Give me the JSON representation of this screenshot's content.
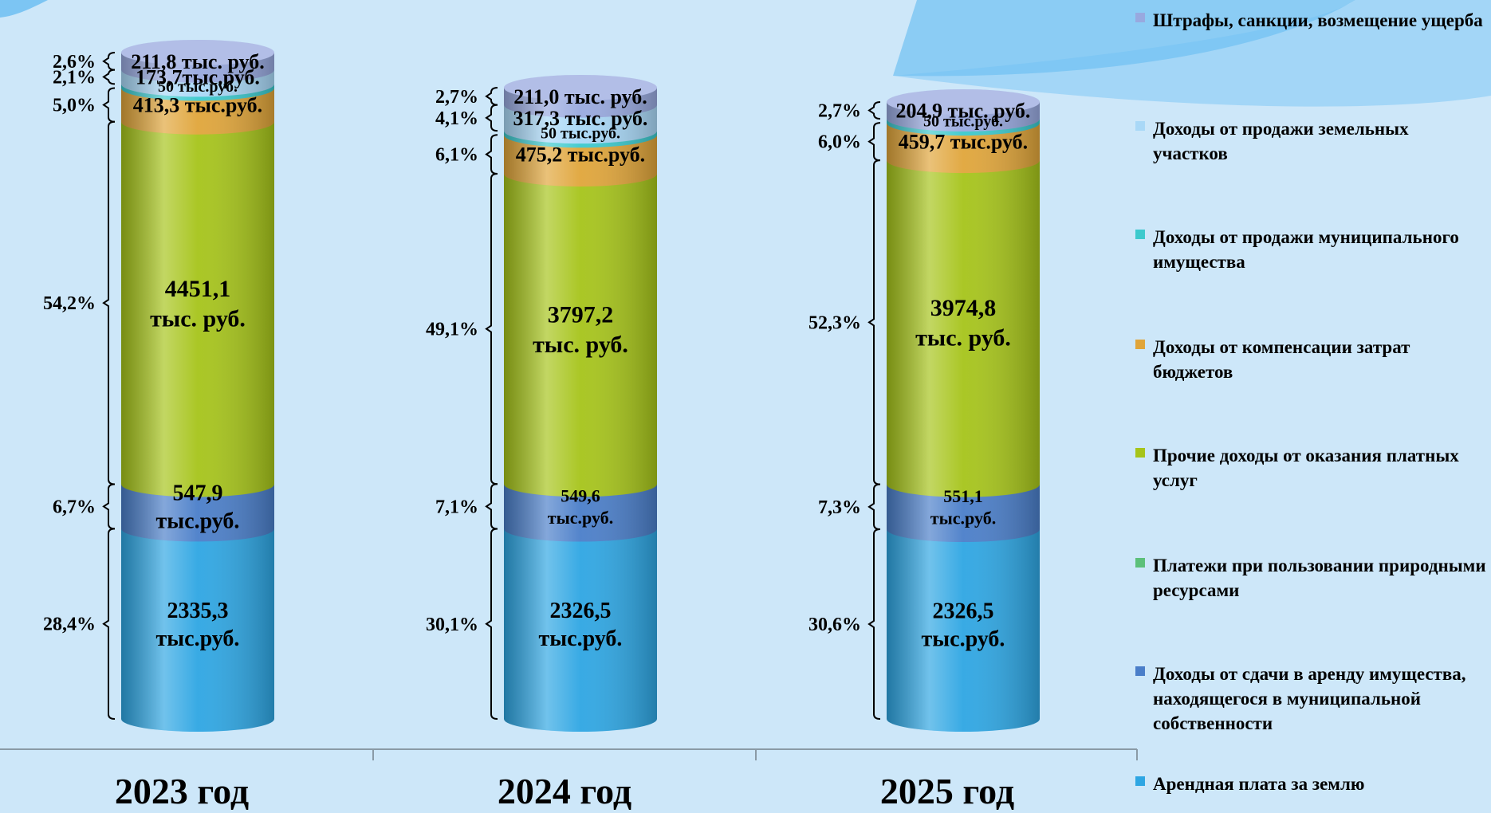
{
  "chart_data": {
    "type": "bar",
    "stacked": true,
    "categories": [
      "2023 год",
      "2024 год",
      "2025 год"
    ],
    "unit": "тыс. руб.",
    "series": [
      {
        "name": "Арендная плата за землю",
        "color": "#2ea6e3",
        "values": [
          2335.3,
          2326.5,
          2326.5
        ],
        "labels": [
          "2335,3\nтыс.руб.",
          "2326,5\nтыс.руб.",
          "2326,5\nтыс.руб."
        ],
        "pct": [
          "28,4%",
          "30,1%",
          "30,6%"
        ]
      },
      {
        "name": "Доходы от сдачи в аренду имущества, находящегося в муниципальной собственности",
        "color": "#4a7ec9",
        "values": [
          547.9,
          549.6,
          551.1
        ],
        "labels": [
          "547,9\nтыс.руб.",
          "549,6\nтыс.руб.",
          "551,1\nтыс.руб."
        ],
        "pct": [
          "6,7%",
          "7,1%",
          "7,3%"
        ]
      },
      {
        "name": "Платежи при пользовании природными ресурсами",
        "color": "#5cc07a",
        "values": [
          0,
          0,
          0
        ],
        "labels": [
          "",
          "",
          ""
        ],
        "pct": [
          "",
          "",
          ""
        ]
      },
      {
        "name": "Прочие доходы от оказания платных услуг",
        "color": "#a6c41a",
        "values": [
          4451.1,
          3797.2,
          3974.8
        ],
        "labels": [
          "4451,1\nтыс. руб.",
          "3797,2\nтыс. руб.",
          "3974,8\nтыс. руб."
        ],
        "pct": [
          "54,2%",
          "49,1%",
          "52,3%"
        ]
      },
      {
        "name": "Доходы от компенсации затрат бюджетов",
        "color": "#e0a53a",
        "values": [
          413.3,
          475.2,
          459.7
        ],
        "labels": [
          "413,3 тыс.руб.",
          "475,2 тыс.руб.",
          "459,7 тыс.руб."
        ],
        "pct": [
          "5,0%",
          "6,1%",
          "6,0%"
        ]
      },
      {
        "name": "Доходы от продажи муниципального имущества",
        "color": "#3cc9cd",
        "values": [
          50,
          50,
          50
        ],
        "labels": [
          "50 тыс.руб.",
          "50 тыс.руб.",
          "50 тыс.руб."
        ],
        "pct": [
          "",
          "",
          ""
        ]
      },
      {
        "name": "Доходы от продажи земельных участков",
        "color": "#a9d8f7",
        "values": [
          173.7,
          317.3,
          0
        ],
        "labels": [
          "173,7тыс.руб.",
          "317,3 тыс. руб.",
          ""
        ],
        "pct": [
          "2,1%",
          "4,1%",
          ""
        ]
      },
      {
        "name": "Штрафы, санкции, возмещение ущерба",
        "color": "#98a9df",
        "values": [
          211.8,
          211.0,
          204.9
        ],
        "labels": [
          "211,8 тыс. руб.",
          "211,0 тыс. руб.",
          "204,9 тыс. руб."
        ],
        "pct": [
          "2,6%",
          "2,7%",
          "2,7%"
        ]
      }
    ],
    "legend_position": "right",
    "legend_order": [
      7,
      6,
      5,
      4,
      3,
      2,
      1,
      0
    ],
    "grid": false
  }
}
